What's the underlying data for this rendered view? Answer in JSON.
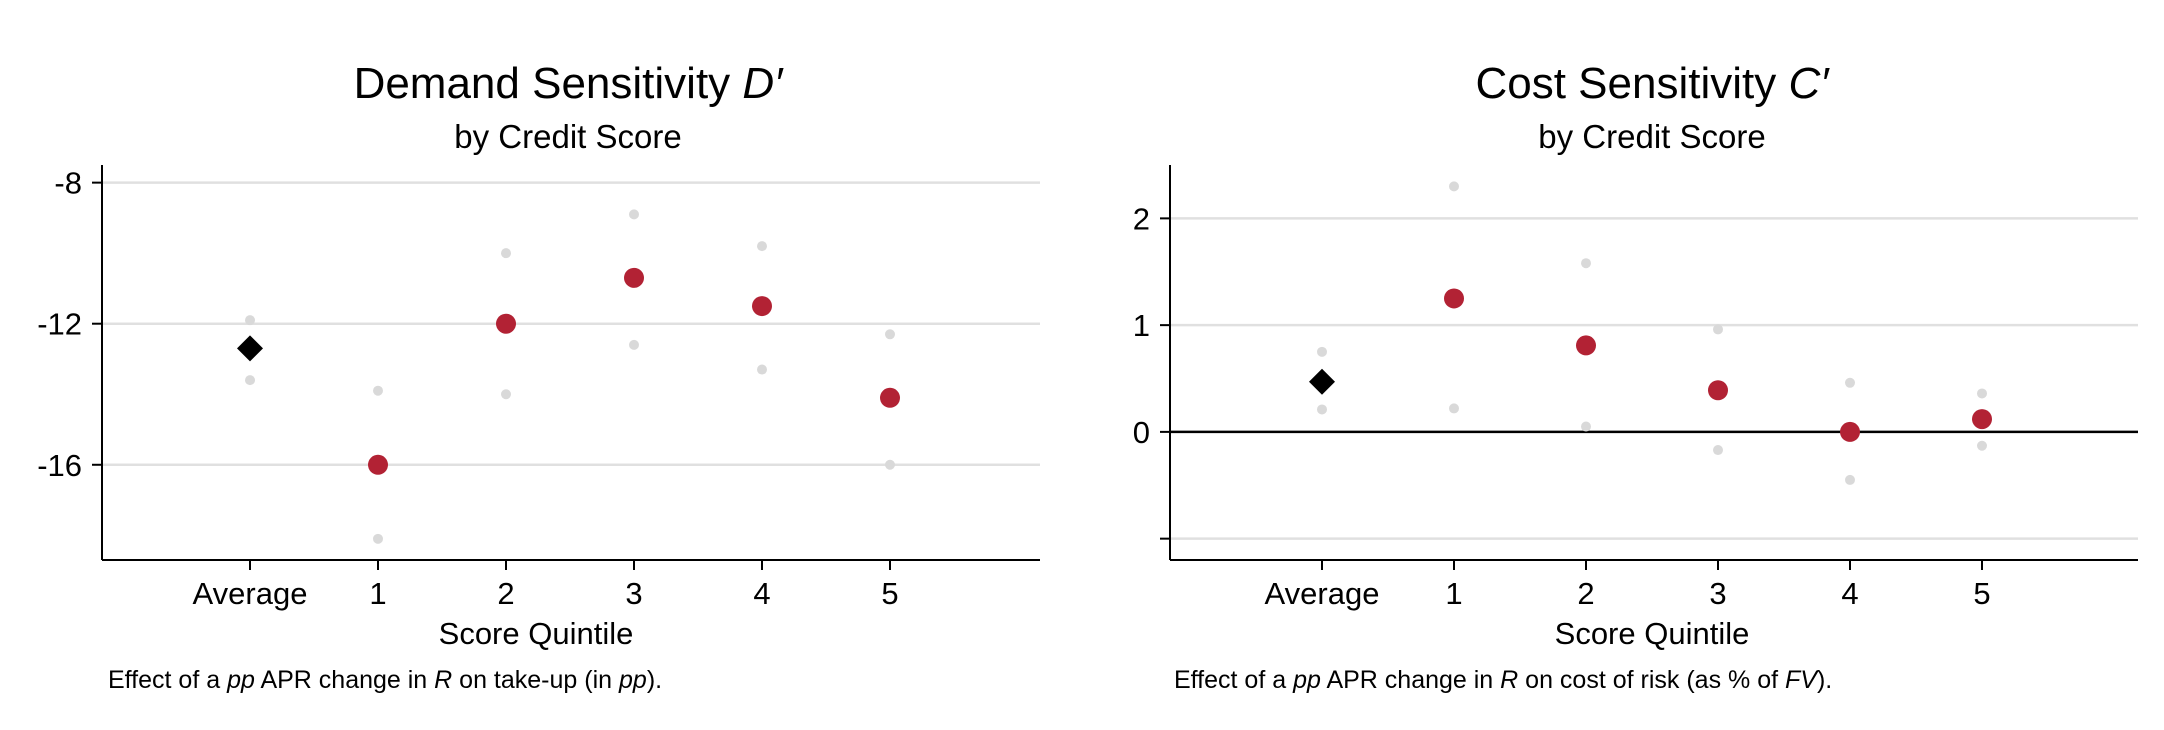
{
  "chart_data": [
    {
      "type": "scatter",
      "title": "Demand Sensitivity",
      "title_symbol": "D′",
      "subtitle": "by Credit Score",
      "xlabel": "Score Quintile",
      "categories": [
        "Average",
        "1",
        "2",
        "3",
        "4",
        "5"
      ],
      "estimates": [
        -12.7,
        -16.0,
        -12.0,
        -10.7,
        -11.5,
        -14.1
      ],
      "ci_upper": [
        -11.9,
        -13.9,
        -10.0,
        -8.9,
        -9.8,
        -12.3
      ],
      "ci_lower": [
        -13.6,
        -18.1,
        -14.0,
        -12.6,
        -13.3,
        -16.0
      ],
      "ylim": [
        -18.7,
        -7.5
      ],
      "yticks": [
        -8,
        -12,
        -16
      ],
      "ytick_labels": [
        "-8",
        "-12",
        "-16"
      ],
      "grid": true,
      "zero_line": false,
      "colors": {
        "average": "#000000",
        "quintile": "#b22234",
        "ci": "#d9d9d9",
        "grid": "#e0e0e0"
      },
      "note": [
        "Effect of a ",
        "pp",
        " APR change in ",
        "R",
        " on take-up (in ",
        "pp",
        ")."
      ]
    },
    {
      "type": "scatter",
      "title": "Cost Sensitivity",
      "title_symbol": "C′",
      "subtitle": "by Credit Score",
      "xlabel": "Score Quintile",
      "categories": [
        "Average",
        "1",
        "2",
        "3",
        "4",
        "5"
      ],
      "estimates": [
        0.47,
        1.25,
        0.81,
        0.39,
        0.0,
        0.12
      ],
      "ci_upper": [
        0.75,
        2.3,
        1.58,
        0.96,
        0.46,
        0.36
      ],
      "ci_lower": [
        0.21,
        0.22,
        0.05,
        -0.17,
        -0.45,
        -0.13
      ],
      "ylim": [
        -1.2,
        2.5
      ],
      "yticks": [
        2,
        1,
        0,
        -1
      ],
      "ytick_labels": [
        "2",
        "1",
        "0",
        ""
      ],
      "grid": true,
      "zero_line": true,
      "colors": {
        "average": "#000000",
        "quintile": "#b22234",
        "ci": "#d9d9d9",
        "grid": "#e0e0e0"
      },
      "note": [
        "Effect of a ",
        "pp",
        " APR change in ",
        "R",
        " on cost of risk (as % of ",
        "FV",
        ")."
      ]
    }
  ]
}
